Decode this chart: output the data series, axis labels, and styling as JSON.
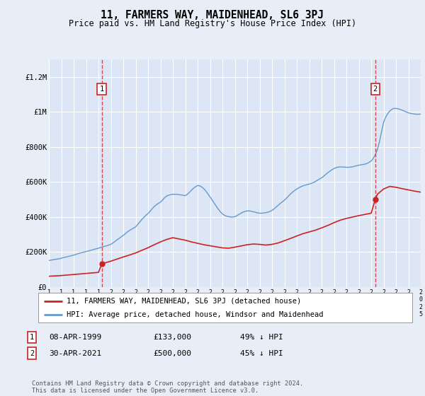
{
  "title": "11, FARMERS WAY, MAIDENHEAD, SL6 3PJ",
  "subtitle": "Price paid vs. HM Land Registry's House Price Index (HPI)",
  "background_color": "#e8eef7",
  "plot_bg_color": "#dce6f5",
  "ylim": [
    0,
    1300000
  ],
  "yticks": [
    0,
    200000,
    400000,
    600000,
    800000,
    1000000,
    1200000
  ],
  "ytick_labels": [
    "£0",
    "£200K",
    "£400K",
    "£600K",
    "£800K",
    "£1M",
    "£1.2M"
  ],
  "xstart": 1995,
  "xend": 2025,
  "sale_dates": [
    1999.27,
    2021.33
  ],
  "sale_prices": [
    133000,
    500000
  ],
  "sale_labels": [
    "1",
    "2"
  ],
  "legend_red": "11, FARMERS WAY, MAIDENHEAD, SL6 3PJ (detached house)",
  "legend_blue": "HPI: Average price, detached house, Windsor and Maidenhead",
  "annotation_1": "08-APR-1999",
  "annotation_1_price": "£133,000",
  "annotation_1_hpi": "49% ↓ HPI",
  "annotation_2": "30-APR-2021",
  "annotation_2_price": "£500,000",
  "annotation_2_hpi": "45% ↓ HPI",
  "footer": "Contains HM Land Registry data © Crown copyright and database right 2024.\nThis data is licensed under the Open Government Licence v3.0.",
  "hpi_color": "#6699cc",
  "red_color": "#cc2222",
  "grid_color": "#ffffff",
  "hpi_x": [
    1995.0,
    1995.08,
    1995.17,
    1995.25,
    1995.33,
    1995.42,
    1995.5,
    1995.58,
    1995.67,
    1995.75,
    1995.83,
    1995.92,
    1996.0,
    1996.08,
    1996.17,
    1996.25,
    1996.33,
    1996.42,
    1996.5,
    1996.58,
    1996.67,
    1996.75,
    1996.83,
    1996.92,
    1997.0,
    1997.17,
    1997.33,
    1997.5,
    1997.67,
    1997.83,
    1998.0,
    1998.17,
    1998.33,
    1998.5,
    1998.67,
    1998.83,
    1999.0,
    1999.17,
    1999.33,
    1999.5,
    1999.67,
    1999.83,
    2000.0,
    2000.17,
    2000.33,
    2000.5,
    2000.67,
    2000.83,
    2001.0,
    2001.17,
    2001.33,
    2001.5,
    2001.67,
    2001.83,
    2002.0,
    2002.17,
    2002.33,
    2002.5,
    2002.67,
    2002.83,
    2003.0,
    2003.17,
    2003.33,
    2003.5,
    2003.67,
    2003.83,
    2004.0,
    2004.17,
    2004.33,
    2004.5,
    2004.67,
    2004.83,
    2005.0,
    2005.17,
    2005.33,
    2005.5,
    2005.67,
    2005.83,
    2006.0,
    2006.17,
    2006.33,
    2006.5,
    2006.67,
    2006.83,
    2007.0,
    2007.17,
    2007.33,
    2007.5,
    2007.67,
    2007.83,
    2008.0,
    2008.17,
    2008.33,
    2008.5,
    2008.67,
    2008.83,
    2009.0,
    2009.17,
    2009.33,
    2009.5,
    2009.67,
    2009.83,
    2010.0,
    2010.17,
    2010.33,
    2010.5,
    2010.67,
    2010.83,
    2011.0,
    2011.17,
    2011.33,
    2011.5,
    2011.67,
    2011.83,
    2012.0,
    2012.17,
    2012.33,
    2012.5,
    2012.67,
    2012.83,
    2013.0,
    2013.17,
    2013.33,
    2013.5,
    2013.67,
    2013.83,
    2014.0,
    2014.17,
    2014.33,
    2014.5,
    2014.67,
    2014.83,
    2015.0,
    2015.17,
    2015.33,
    2015.5,
    2015.67,
    2015.83,
    2016.0,
    2016.17,
    2016.33,
    2016.5,
    2016.67,
    2016.83,
    2017.0,
    2017.17,
    2017.33,
    2017.5,
    2017.67,
    2017.83,
    2018.0,
    2018.17,
    2018.33,
    2018.5,
    2018.67,
    2018.83,
    2019.0,
    2019.17,
    2019.33,
    2019.5,
    2019.67,
    2019.83,
    2020.0,
    2020.17,
    2020.33,
    2020.5,
    2020.67,
    2020.83,
    2021.0,
    2021.17,
    2021.33,
    2021.5,
    2021.67,
    2021.83,
    2022.0,
    2022.17,
    2022.33,
    2022.5,
    2022.67,
    2022.83,
    2023.0,
    2023.17,
    2023.33,
    2023.5,
    2023.67,
    2023.83,
    2024.0,
    2024.17,
    2024.33,
    2024.5,
    2024.67,
    2024.83,
    2025.0
  ],
  "hpi_y": [
    152000,
    153000,
    154000,
    155000,
    156000,
    157000,
    158000,
    159000,
    160000,
    161000,
    162000,
    163000,
    165000,
    167000,
    168000,
    170000,
    171000,
    172000,
    174000,
    175000,
    177000,
    178000,
    180000,
    181000,
    183000,
    186000,
    190000,
    194000,
    197000,
    200000,
    203000,
    206000,
    209000,
    212000,
    216000,
    219000,
    222000,
    226000,
    230000,
    233000,
    236000,
    240000,
    244000,
    252000,
    261000,
    270000,
    278000,
    287000,
    295000,
    305000,
    315000,
    323000,
    330000,
    337000,
    344000,
    358000,
    372000,
    386000,
    398000,
    410000,
    420000,
    433000,
    447000,
    460000,
    470000,
    478000,
    485000,
    497000,
    510000,
    520000,
    525000,
    528000,
    530000,
    530000,
    530000,
    528000,
    526000,
    524000,
    522000,
    530000,
    540000,
    553000,
    565000,
    573000,
    580000,
    578000,
    572000,
    562000,
    548000,
    532000,
    515000,
    498000,
    480000,
    462000,
    445000,
    430000,
    418000,
    410000,
    405000,
    402000,
    400000,
    400000,
    402000,
    408000,
    415000,
    422000,
    428000,
    432000,
    435000,
    435000,
    433000,
    430000,
    427000,
    424000,
    422000,
    422000,
    423000,
    425000,
    428000,
    432000,
    438000,
    447000,
    457000,
    468000,
    478000,
    487000,
    496000,
    508000,
    520000,
    532000,
    543000,
    552000,
    560000,
    567000,
    573000,
    578000,
    582000,
    585000,
    588000,
    592000,
    597000,
    603000,
    610000,
    617000,
    624000,
    633000,
    643000,
    653000,
    662000,
    670000,
    677000,
    682000,
    685000,
    686000,
    686000,
    685000,
    684000,
    684000,
    685000,
    687000,
    690000,
    693000,
    696000,
    698000,
    700000,
    702000,
    706000,
    712000,
    720000,
    735000,
    755000,
    785000,
    830000,
    885000,
    940000,
    970000,
    990000,
    1005000,
    1015000,
    1020000,
    1020000,
    1018000,
    1015000,
    1010000,
    1005000,
    1000000,
    995000,
    992000,
    990000,
    988000,
    987000,
    987000,
    988000
  ],
  "red_x": [
    1995.0,
    1995.5,
    1996.0,
    1996.5,
    1997.0,
    1997.5,
    1998.0,
    1998.5,
    1999.0,
    1999.27,
    1999.5,
    2000.0,
    2000.5,
    2001.0,
    2001.5,
    2002.0,
    2002.5,
    2003.0,
    2003.5,
    2004.0,
    2004.5,
    2005.0,
    2005.5,
    2006.0,
    2006.5,
    2007.0,
    2007.5,
    2008.0,
    2008.5,
    2009.0,
    2009.5,
    2010.0,
    2010.5,
    2011.0,
    2011.5,
    2012.0,
    2012.5,
    2013.0,
    2013.5,
    2014.0,
    2014.5,
    2015.0,
    2015.5,
    2016.0,
    2016.5,
    2017.0,
    2017.5,
    2018.0,
    2018.5,
    2019.0,
    2019.5,
    2020.0,
    2020.5,
    2021.0,
    2021.33,
    2021.5,
    2022.0,
    2022.5,
    2023.0,
    2023.5,
    2024.0,
    2024.5,
    2025.0
  ],
  "red_y": [
    62000,
    64000,
    66000,
    69000,
    72000,
    75000,
    78000,
    81000,
    84000,
    133000,
    138000,
    148000,
    160000,
    172000,
    183000,
    195000,
    210000,
    225000,
    242000,
    258000,
    272000,
    282000,
    275000,
    268000,
    258000,
    250000,
    242000,
    236000,
    230000,
    224000,
    222000,
    228000,
    235000,
    242000,
    246000,
    244000,
    240000,
    244000,
    252000,
    265000,
    278000,
    292000,
    305000,
    315000,
    325000,
    338000,
    352000,
    368000,
    382000,
    392000,
    400000,
    408000,
    415000,
    422000,
    500000,
    530000,
    560000,
    575000,
    570000,
    562000,
    555000,
    548000,
    542000
  ]
}
